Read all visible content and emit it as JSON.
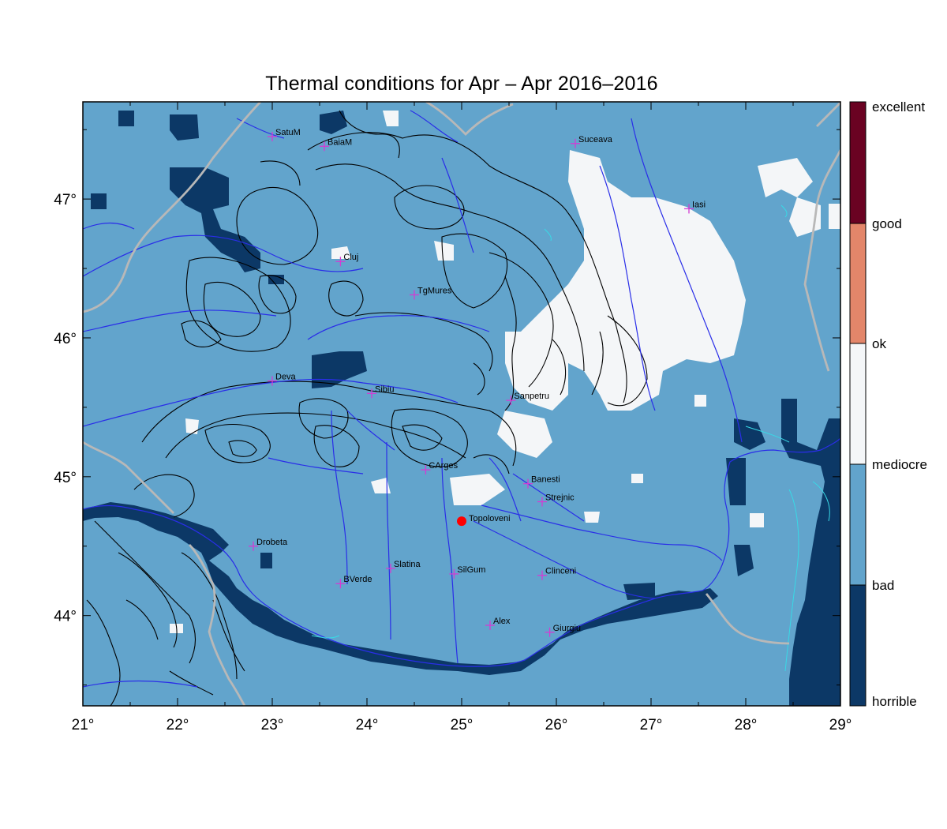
{
  "title": "Thermal conditions for Apr – Apr  2016–2016",
  "colors": {
    "horrible": "#0c3866",
    "bad": "#62a4cc",
    "mediocre": "#f4f6f8",
    "ok": "#e3866a",
    "good": "#6a0222",
    "rivers": "#2a2ee8",
    "borders": "#b8b8b8",
    "contours": "#000000",
    "marker": "#d33cd3",
    "station": "#ff0000"
  },
  "axes": {
    "lon_ticks": [
      "21°",
      "22°",
      "23°",
      "24°",
      "25°",
      "26°",
      "27°",
      "28°",
      "29°"
    ],
    "lat_ticks": [
      "47°",
      "46°",
      "45°",
      "44°"
    ],
    "lon_range": [
      21,
      29
    ],
    "lat_range": [
      43.35,
      47.7
    ]
  },
  "legend": {
    "labels": [
      "excellent",
      "good",
      "ok",
      "mediocre",
      "bad",
      "horrible"
    ]
  },
  "cities": [
    {
      "name": "SatuM",
      "lon": 23.0,
      "lat": 47.45
    },
    {
      "name": "BaiaM",
      "lon": 23.55,
      "lat": 47.38
    },
    {
      "name": "Suceava",
      "lon": 26.2,
      "lat": 47.4
    },
    {
      "name": "Iasi",
      "lon": 27.4,
      "lat": 46.93
    },
    {
      "name": "Cluj",
      "lon": 23.72,
      "lat": 46.55
    },
    {
      "name": "TgMures",
      "lon": 24.5,
      "lat": 46.31
    },
    {
      "name": "Deva",
      "lon": 23.0,
      "lat": 45.69
    },
    {
      "name": "Sibiu",
      "lon": 24.05,
      "lat": 45.6
    },
    {
      "name": "Sanpetru",
      "lon": 25.52,
      "lat": 45.55
    },
    {
      "name": "CArges",
      "lon": 24.62,
      "lat": 45.05
    },
    {
      "name": "Banesti",
      "lon": 25.7,
      "lat": 44.95
    },
    {
      "name": "Strejnic",
      "lon": 25.85,
      "lat": 44.82
    },
    {
      "name": "Drobeta",
      "lon": 22.8,
      "lat": 44.5
    },
    {
      "name": "Slatina",
      "lon": 24.25,
      "lat": 44.34
    },
    {
      "name": "SilGum",
      "lon": 24.92,
      "lat": 44.3
    },
    {
      "name": "Clinceni",
      "lon": 25.85,
      "lat": 44.29
    },
    {
      "name": "BVerde",
      "lon": 23.72,
      "lat": 44.23
    },
    {
      "name": "Alex",
      "lon": 25.3,
      "lat": 43.93
    },
    {
      "name": "Giurgiu",
      "lon": 25.93,
      "lat": 43.88
    }
  ],
  "station": {
    "name": "Topoloveni",
    "lon": 25.0,
    "lat": 44.68
  }
}
